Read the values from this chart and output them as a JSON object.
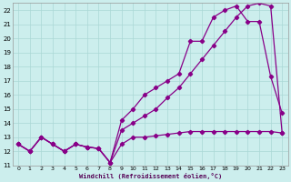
{
  "xlabel": "Windchill (Refroidissement éolien,°C)",
  "background_color": "#cceeed",
  "grid_color": "#aad8d6",
  "line_color": "#880088",
  "xlim": [
    -0.5,
    23.5
  ],
  "ylim": [
    11,
    22.5
  ],
  "xticks": [
    0,
    1,
    2,
    3,
    4,
    5,
    6,
    7,
    8,
    9,
    10,
    11,
    12,
    13,
    14,
    15,
    16,
    17,
    18,
    19,
    20,
    21,
    22,
    23
  ],
  "yticks": [
    11,
    12,
    13,
    14,
    15,
    16,
    17,
    18,
    19,
    20,
    21,
    22
  ],
  "line1_x": [
    0,
    1,
    2,
    3,
    4,
    5,
    6,
    7,
    8,
    9,
    10,
    11,
    12,
    13,
    14,
    15,
    16,
    17,
    18,
    19,
    20,
    21,
    22,
    23
  ],
  "line1_y": [
    12.5,
    12.0,
    13.0,
    12.5,
    12.0,
    12.5,
    12.3,
    12.2,
    11.2,
    12.5,
    13.0,
    13.0,
    13.1,
    13.2,
    13.3,
    13.4,
    13.4,
    13.4,
    13.4,
    13.4,
    13.4,
    13.4,
    13.4,
    13.3
  ],
  "line2_x": [
    0,
    1,
    2,
    3,
    4,
    5,
    6,
    7,
    8,
    9,
    10,
    11,
    12,
    13,
    14,
    15,
    16,
    17,
    18,
    19,
    20,
    21,
    22,
    23
  ],
  "line2_y": [
    12.5,
    12.0,
    13.0,
    12.5,
    12.0,
    12.5,
    12.3,
    12.2,
    11.2,
    14.2,
    15.0,
    16.0,
    16.5,
    17.0,
    17.5,
    19.8,
    19.8,
    21.5,
    22.0,
    22.3,
    21.2,
    21.2,
    17.3,
    14.7
  ],
  "line3_x": [
    0,
    1,
    2,
    3,
    4,
    5,
    6,
    7,
    8,
    9,
    10,
    11,
    12,
    13,
    14,
    15,
    16,
    17,
    18,
    19,
    20,
    21,
    22,
    23
  ],
  "line3_y": [
    12.5,
    12.0,
    13.0,
    12.5,
    12.0,
    12.5,
    12.3,
    12.2,
    11.2,
    13.5,
    14.0,
    14.5,
    15.0,
    15.8,
    16.5,
    17.5,
    18.5,
    19.5,
    20.5,
    21.5,
    22.3,
    22.5,
    22.3,
    13.3
  ]
}
